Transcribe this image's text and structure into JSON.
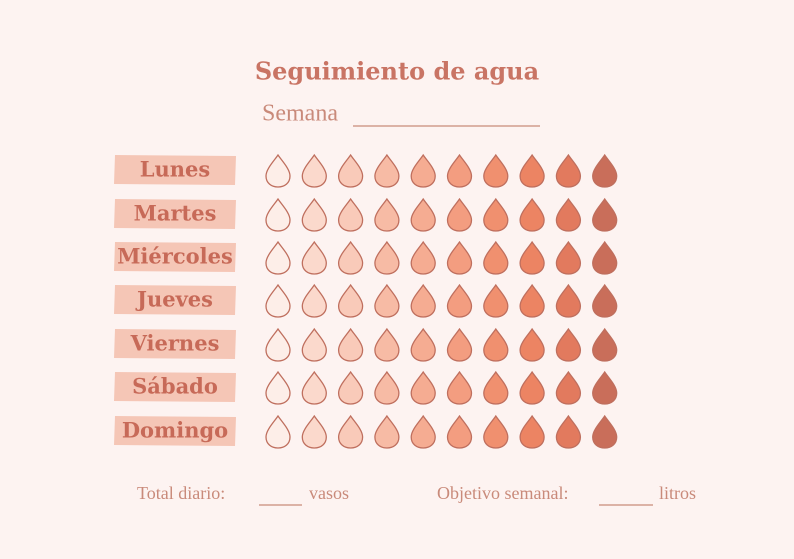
{
  "header": {
    "title": "Seguimiento de agua",
    "week_label": "Semana"
  },
  "days": [
    "Lunes",
    "Martes",
    "Miércoles",
    "Jueves",
    "Viernes",
    "Sábado",
    "Domingo"
  ],
  "footer": {
    "daily_label": "Total diario:",
    "daily_unit": "vasos",
    "weekly_label": "Objetivo semanal:",
    "weekly_unit": "litros"
  }
}
